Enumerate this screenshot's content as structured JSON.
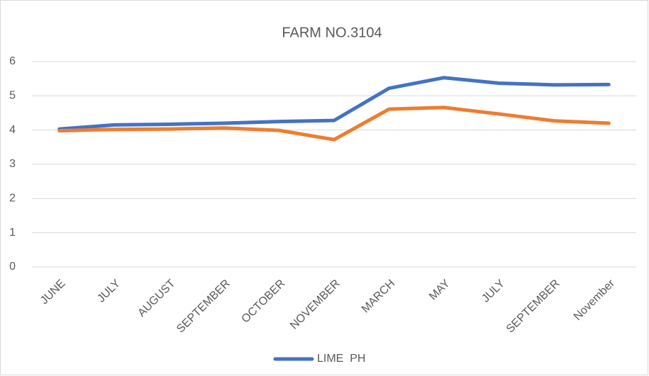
{
  "chart_data": {
    "type": "line",
    "title": "FARM NO.3104",
    "categories": [
      "JUNE",
      "JULY",
      "AUGUST",
      "SEPTEMBER",
      "OCTOBER",
      "NOVEMBER",
      "MARCH",
      "MAY",
      "JULY",
      "SEPTEMBER",
      "November"
    ],
    "series": [
      {
        "name": "LIME  PH",
        "color": "#4472c4",
        "values": [
          4.03,
          4.15,
          4.17,
          4.2,
          4.25,
          4.28,
          5.22,
          5.53,
          5.37,
          5.32,
          5.33
        ]
      },
      {
        "color": "#ed7d31",
        "values": [
          3.98,
          4.02,
          4.03,
          4.06,
          3.99,
          3.72,
          4.61,
          4.66,
          4.47,
          4.27,
          4.2
        ]
      }
    ],
    "ylim": [
      0,
      6
    ],
    "yticks": [
      0,
      1,
      2,
      3,
      4,
      5,
      6
    ],
    "grid": true,
    "legend": "bottom"
  }
}
